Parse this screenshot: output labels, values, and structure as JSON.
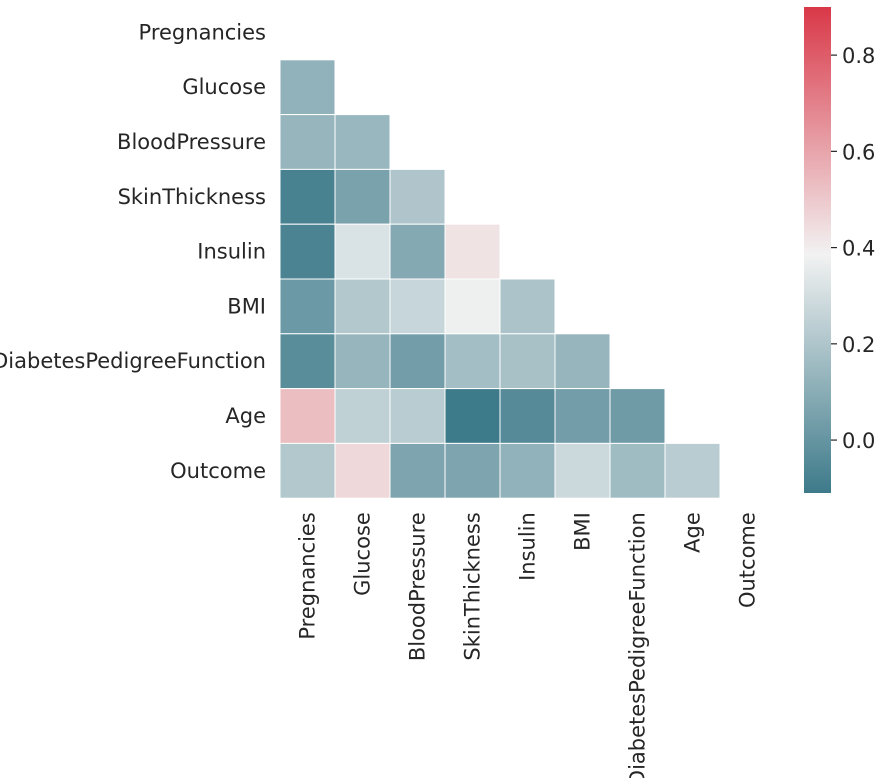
{
  "chart_data": {
    "type": "heatmap",
    "mask": "upper-triangle",
    "labels": [
      "Pregnancies",
      "Glucose",
      "BloodPressure",
      "SkinThickness",
      "Insulin",
      "BMI",
      "DiabetesPedigreeFunction",
      "Age",
      "Outcome"
    ],
    "rows": [
      [],
      [
        0.13
      ],
      [
        0.14,
        0.15
      ],
      [
        -0.08,
        0.06,
        0.21
      ],
      [
        -0.07,
        0.33,
        0.09,
        0.44
      ],
      [
        0.02,
        0.22,
        0.28,
        0.39,
        0.2
      ],
      [
        -0.03,
        0.14,
        0.04,
        0.18,
        0.19,
        0.14
      ],
      [
        0.54,
        0.26,
        0.24,
        -0.11,
        -0.04,
        0.04,
        0.03
      ],
      [
        0.22,
        0.47,
        0.07,
        0.07,
        0.13,
        0.29,
        0.17,
        0.24
      ]
    ],
    "colorbar": {
      "min": -0.11,
      "max": 0.9,
      "ticks": [
        0.0,
        0.2,
        0.4,
        0.6,
        0.8
      ],
      "tick_labels": [
        "0.0",
        "0.2",
        "0.4",
        "0.6",
        "0.8"
      ]
    },
    "colors": {
      "low": "#3d7a8a",
      "mid": "#f2f2f2",
      "high": "#d93848",
      "cell_border": "#ffffff",
      "text": "#262626"
    }
  }
}
